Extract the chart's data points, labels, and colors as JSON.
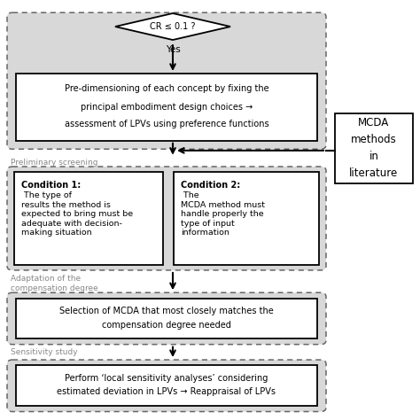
{
  "white": "#ffffff",
  "black": "#000000",
  "light_gray_fill": "#d8d8d8",
  "diamond_text": "CR ≤ 0.1 ?",
  "yes_text": "Yes",
  "box1_line1": "Pre-dimensioning of each concept by fixing the",
  "box1_line2": "principal embodiment design choices →",
  "box1_line3": "assessment of LPVs using preference functions",
  "label1": "Preliminary screening",
  "cond1_title": "Condition 1:",
  "cond1_body": " The type of\nresults the method is\nexpected to bring must be\nadequate with decision-\nmaking situation",
  "cond2_title": "Condition 2:",
  "cond2_body": " The\nMCDA method must\nhandle properly the\ntype of input\ninformation",
  "label2": "Adaptation of the\ncompensation degree",
  "box3_line1": "Selection of MCDA that most closely matches the",
  "box3_line2": "compensation degree needed",
  "label3": "Sensitivity study",
  "box4_line1": "Perform ‘local sensitivity analyses’ considering",
  "box4_line2": "estimated deviation in LPVs → Reappraisal of LPVs",
  "sidebar_text": "MCDA\nmethods\nin\nliterature",
  "figsize": [
    4.74,
    4.74
  ],
  "dpi": 100
}
